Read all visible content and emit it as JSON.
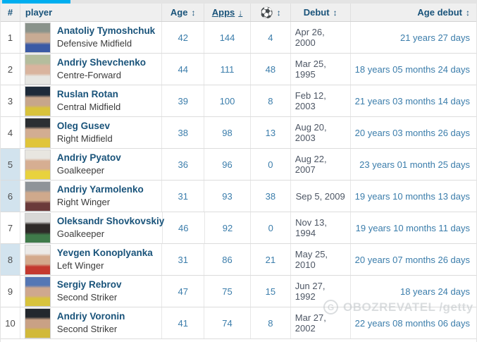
{
  "accent": {
    "active_tab": "#00aeef",
    "header_text": "#19537a",
    "link_blue": "#3b7dab",
    "rank_highlight": "#d2e3ee"
  },
  "icons": {
    "sort_both": "↕",
    "sort_desc": "↓",
    "soccer_ball": "⚽",
    "watermark_logo": "G"
  },
  "table": {
    "columns": {
      "rank": {
        "label": "#"
      },
      "player": {
        "label": "player"
      },
      "age": {
        "label": "Age"
      },
      "apps": {
        "label": "Apps",
        "sorted": "descending"
      },
      "goals": {
        "label": "",
        "icon": "soccer-ball"
      },
      "debut": {
        "label": "Debut"
      },
      "age_debut": {
        "label": "Age debut"
      }
    },
    "rows": [
      {
        "rank": "1",
        "name": "Anatoliy Tymoshchuk",
        "position": "Defensive Midfield",
        "age": "42",
        "apps": "144",
        "goals": "4",
        "debut": "Apr 26, 2000",
        "age_debut": "21 years 27 days",
        "rank_highlight": false,
        "photo": [
          "#8a938b",
          "#c8ab94",
          "#3b5aa5"
        ]
      },
      {
        "rank": "2",
        "name": "Andriy Shevchenko",
        "position": "Centre-Forward",
        "age": "44",
        "apps": "111",
        "goals": "48",
        "debut": "Mar 25, 1995",
        "age_debut": "18 years 05 months 24 days",
        "rank_highlight": false,
        "photo": [
          "#b4bd9d",
          "#d9b49e",
          "#e6e6e2"
        ]
      },
      {
        "rank": "3",
        "name": "Ruslan Rotan",
        "position": "Central Midfield",
        "age": "39",
        "apps": "100",
        "goals": "8",
        "debut": "Feb 12, 2003",
        "age_debut": "21 years 03 months 14 days",
        "rank_highlight": false,
        "photo": [
          "#1d2a3a",
          "#c7a68b",
          "#d9c33c"
        ]
      },
      {
        "rank": "4",
        "name": "Oleg Gusev",
        "position": "Right Midfield",
        "age": "38",
        "apps": "98",
        "goals": "13",
        "debut": "Aug 20, 2003",
        "age_debut": "20 years 03 months 26 days",
        "rank_highlight": false,
        "photo": [
          "#2b2f33",
          "#d2ad92",
          "#e0c53a"
        ]
      },
      {
        "rank": "5",
        "name": "Andriy Pyatov",
        "position": "Goalkeeper",
        "age": "36",
        "apps": "96",
        "goals": "0",
        "debut": "Aug 22, 2007",
        "age_debut": "23 years 01 month 25 days",
        "rank_highlight": true,
        "photo": [
          "#e8e6e0",
          "#d6ae92",
          "#e8d23e"
        ]
      },
      {
        "rank": "6",
        "name": "Andriy Yarmolenko",
        "position": "Right Winger",
        "age": "31",
        "apps": "93",
        "goals": "38",
        "debut": "Sep 5, 2009",
        "age_debut": "19 years 10 months 13 days",
        "rank_highlight": true,
        "photo": [
          "#8f9499",
          "#cfa98c",
          "#6b3a3a"
        ]
      },
      {
        "rank": "7",
        "name": "Oleksandr Shovkovskiy",
        "position": "Goalkeeper",
        "age": "46",
        "apps": "92",
        "goals": "0",
        "debut": "Nov 13, 1994",
        "age_debut": "19 years 10 months 11 days",
        "rank_highlight": false,
        "photo": [
          "#d8d8d6",
          "#2e2a28",
          "#3f7a4a"
        ]
      },
      {
        "rank": "8",
        "name": "Yevgen Konoplyanka",
        "position": "Left Winger",
        "age": "31",
        "apps": "86",
        "goals": "21",
        "debut": "May 25, 2010",
        "age_debut": "20 years 07 months 26 days",
        "rank_highlight": true,
        "photo": [
          "#eceae8",
          "#d4a98c",
          "#c4392f"
        ]
      },
      {
        "rank": "9",
        "name": "Sergiy Rebrov",
        "position": "Second Striker",
        "age": "47",
        "apps": "75",
        "goals": "15",
        "debut": "Jun 27, 1992",
        "age_debut": "18 years 24 days",
        "rank_highlight": false,
        "photo": [
          "#5577b5",
          "#cfa88e",
          "#d8c33c"
        ]
      },
      {
        "rank": "10",
        "name": "Andriy Voronin",
        "position": "Second Striker",
        "age": "41",
        "apps": "74",
        "goals": "8",
        "debut": "Mar 27, 2002",
        "age_debut": "22 years 08 months 06 days",
        "rank_highlight": false,
        "photo": [
          "#23282e",
          "#c9a185",
          "#d1b93a"
        ]
      }
    ]
  },
  "watermark": {
    "text": "OBOZREVATEL /getty"
  }
}
